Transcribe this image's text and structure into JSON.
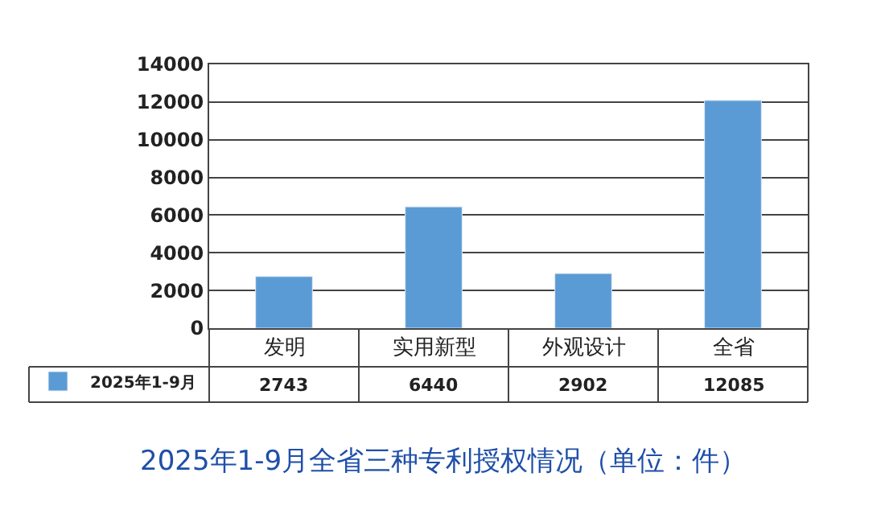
{
  "chart_data": {
    "type": "bar",
    "title": "2025年1-9月全省三种专利授权情况（单位：件）",
    "categories": [
      "发明",
      "实用新型",
      "外观设计",
      "全省"
    ],
    "series": [
      {
        "name": "2025年1-9月",
        "color": "#5b9bd5",
        "values": [
          2743,
          6440,
          2902,
          12085
        ]
      }
    ],
    "ylim": [
      0,
      14000
    ],
    "yticks": [
      0,
      2000,
      4000,
      6000,
      8000,
      10000,
      12000,
      14000
    ],
    "grid": "y",
    "legend": "bottom left",
    "data_labels": true
  }
}
